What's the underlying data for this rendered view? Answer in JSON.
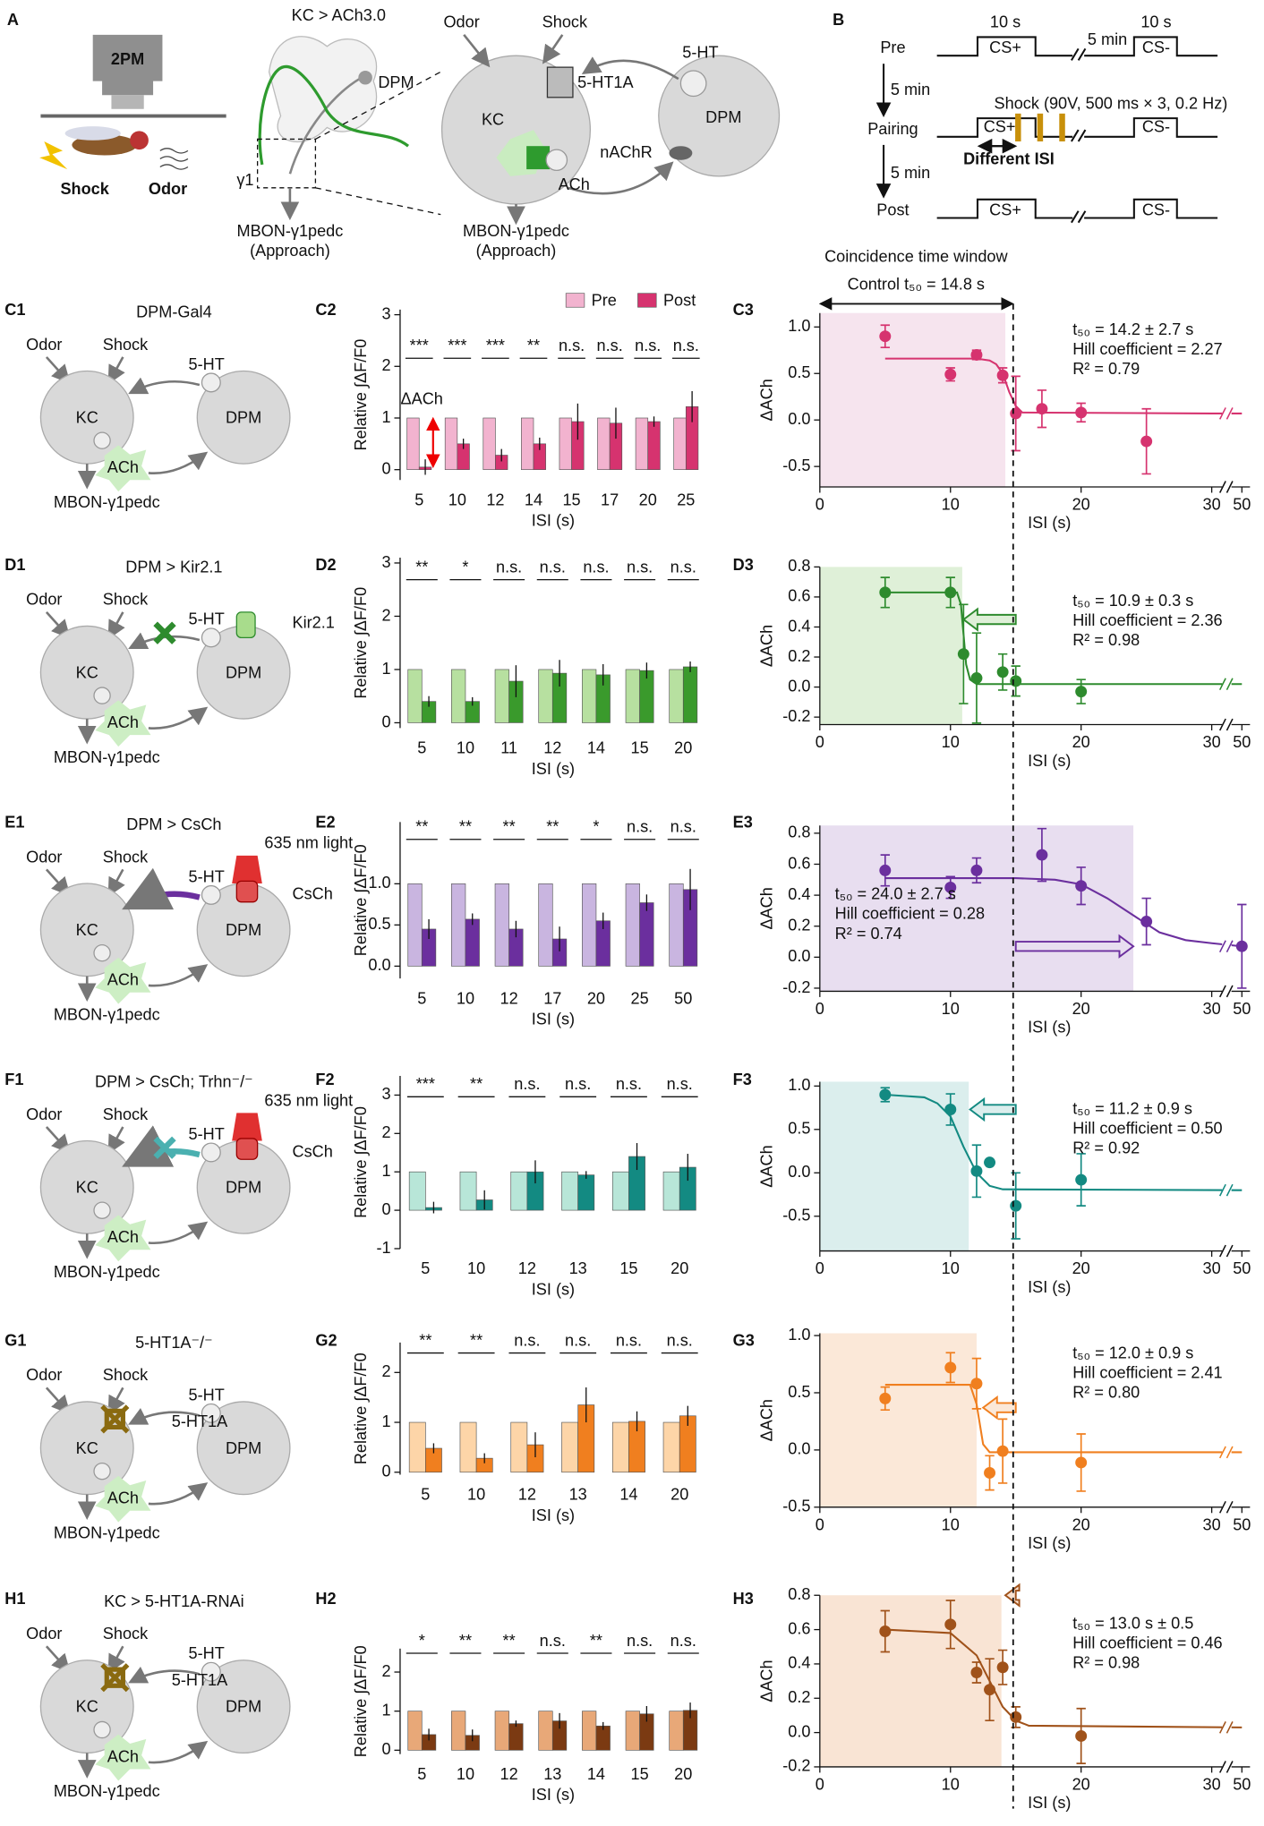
{
  "panel_a": {
    "label": "A",
    "microscope": "2PM",
    "shock": "Shock",
    "odor": "Odor",
    "genotype": "KC > ACh3.0",
    "dpm": "DPM",
    "gamma1": "γ1",
    "mbon": "MBON-γ1pedc",
    "approach": "(Approach)",
    "circuit": {
      "odor": "Odor",
      "shock": "Shock",
      "serotonin": "5-HT",
      "receptor": "5-HT1A",
      "kc": "KC",
      "dpm": "DPM",
      "nachr": "nAChR",
      "ach": "ACh",
      "mbon": "MBON-γ1pedc",
      "approach": "(Approach)"
    }
  },
  "panel_b": {
    "label": "B",
    "pre": "Pre",
    "pairing": "Pairing",
    "post": "Post",
    "duration_a": "10 s",
    "gap": "5 min",
    "duration_b": "10 s",
    "interval1": "5 min",
    "interval2": "5 min",
    "shock": "Shock (90V, 500 ms × 3, 0.2 Hz)",
    "isi": "Different ISI",
    "cs_plus": [
      "CS+",
      "CS+",
      "CS+"
    ],
    "cs_minus": [
      "CS-",
      "CS-",
      "CS-"
    ]
  },
  "window": {
    "title": "Coincidence time window",
    "control": "Control t₅₀ = 14.8 s",
    "control_t50": 14.8
  },
  "rows": [
    {
      "label": "C1",
      "title": "DPM-Gal4",
      "color": "#d6336f",
      "odor": "Odor",
      "shock": "Shock",
      "serotonin": "5-HT",
      "kc": "KC",
      "dpm": "DPM",
      "ach": "ACh",
      "mbon": "MBON-γ1pedc",
      "extras": []
    },
    {
      "label": "D1",
      "title": "DPM > Kir2.1",
      "color": "#2e8b2e",
      "odor": "Odor",
      "shock": "Shock",
      "serotonin": "5-HT",
      "kc": "KC",
      "dpm": "DPM",
      "ach": "ACh",
      "mbon": "MBON-γ1pedc",
      "extras": [
        "Kir2.1"
      ]
    },
    {
      "label": "E1",
      "title": "DPM > CsCh",
      "color": "#6b2f9e",
      "odor": "Odor",
      "shock": "Shock",
      "serotonin": "5-HT",
      "kc": "KC",
      "dpm": "DPM",
      "ach": "ACh",
      "mbon": "MBON-γ1pedc",
      "extras": [
        "635 nm light",
        "CsCh"
      ]
    },
    {
      "label": "F1",
      "title": "DPM > CsCh; Trhn⁻/⁻",
      "color": "#139a90",
      "odor": "Odor",
      "shock": "Shock",
      "serotonin": "5-HT",
      "kc": "KC",
      "dpm": "DPM",
      "ach": "ACh",
      "mbon": "MBON-γ1pedc",
      "extras": [
        "635 nm light",
        "CsCh"
      ]
    },
    {
      "label": "G1",
      "title": "5-HT1A⁻/⁻",
      "color": "#f07f1f",
      "odor": "Odor",
      "shock": "Shock",
      "serotonin": "5-HT",
      "kc": "KC",
      "dpm": "DPM",
      "ach": "ACh",
      "mbon": "MBON-γ1pedc",
      "extras": [
        "5-HT1A"
      ]
    },
    {
      "label": "H1",
      "title": "KC > 5-HT1A-RNAi",
      "color": "#b85a1a",
      "odor": "Odor",
      "shock": "Shock",
      "serotonin": "5-HT",
      "kc": "KC",
      "dpm": "DPM",
      "ach": "ACh",
      "mbon": "MBON-γ1pedc",
      "extras": [
        "5-HT1A"
      ]
    }
  ],
  "chart_data": [
    {
      "type": "bar",
      "label": "C2",
      "categories": [
        "5",
        "10",
        "12",
        "14",
        "15",
        "17",
        "20",
        "25"
      ],
      "series": [
        {
          "name": "Pre",
          "color": "#f2b3cf",
          "values": [
            1,
            1,
            1,
            1,
            1,
            1,
            1,
            1
          ]
        },
        {
          "name": "Post",
          "color": "#d6336f",
          "values": [
            0.05,
            0.5,
            0.28,
            0.5,
            0.93,
            0.9,
            0.93,
            1.22
          ],
          "errors": [
            0.15,
            0.1,
            0.12,
            0.12,
            0.35,
            0.3,
            0.1,
            0.3
          ]
        }
      ],
      "significance": [
        "***",
        "***",
        "***",
        "**",
        "n.s.",
        "n.s.",
        "n.s.",
        "n.s."
      ],
      "annotation": "ΔACh",
      "ylim": [
        -0.2,
        3.1
      ],
      "yticks": [
        0,
        1,
        2,
        3
      ],
      "x_label": "ISI (s)",
      "y_label": "Relative ∫ΔF/F0"
    },
    {
      "type": "scatter",
      "label": "C3",
      "color": "#d6336f",
      "x": [
        5,
        10,
        12,
        14,
        15,
        17,
        20,
        25
      ],
      "values": [
        0.9,
        0.49,
        0.7,
        0.48,
        0.07,
        0.12,
        0.08,
        -0.23
      ],
      "errors": [
        0.12,
        0.07,
        0.05,
        0.08,
        0.4,
        0.2,
        0.1,
        0.35
      ],
      "fit": {
        "x": [
          5,
          12,
          13,
          13.5,
          14,
          14.5,
          15,
          15.5,
          30,
          50
        ],
        "values": [
          0.66,
          0.66,
          0.64,
          0.6,
          0.5,
          0.3,
          0.15,
          0.08,
          0.07,
          0.07
        ]
      },
      "shade": [
        0,
        14.2
      ],
      "shade_color": "#f6e4ee",
      "xlim": [
        0,
        50
      ],
      "xticks": [
        0,
        10,
        20,
        30,
        50
      ],
      "axis_break": true,
      "ylim": [
        -0.72,
        1.15
      ],
      "yticks": [
        -0.5,
        {
          "value": 0,
          "label": "0.0"
        },
        0.5,
        {
          "value": 1,
          "label": "1.0"
        }
      ],
      "x_label": "ISI (s)",
      "y_label": "ΔACh",
      "annotations": [
        "t₅₀ = 14.2 ± 2.7 s",
        "Hill coefficient = 2.27",
        "R² = 0.79"
      ]
    },
    {
      "type": "bar",
      "label": "D2",
      "categories": [
        "5",
        "10",
        "11",
        "12",
        "14",
        "15",
        "20"
      ],
      "series": [
        {
          "color": "#b7e0a0",
          "values": [
            1,
            1,
            1,
            1,
            1,
            1,
            1
          ]
        },
        {
          "color": "#3a9a2c",
          "values": [
            0.4,
            0.4,
            0.78,
            0.93,
            0.9,
            0.98,
            1.05
          ],
          "errors": [
            0.1,
            0.08,
            0.3,
            0.25,
            0.2,
            0.15,
            0.1
          ]
        }
      ],
      "significance": [
        "**",
        "*",
        "n.s.",
        "n.s.",
        "n.s.",
        "n.s.",
        "n.s."
      ],
      "ylim": [
        -0.1,
        3.1
      ],
      "yticks": [
        0,
        1,
        2,
        3
      ],
      "x_label": "ISI (s)",
      "y_label": "Relative ∫ΔF/F0"
    },
    {
      "type": "scatter",
      "label": "D3",
      "color": "#2e8b2e",
      "x": [
        5,
        10,
        11,
        12,
        14,
        15,
        20
      ],
      "values": [
        0.63,
        0.63,
        0.22,
        0.06,
        0.1,
        0.04,
        -0.03
      ],
      "errors": [
        0.1,
        0.1,
        0.33,
        0.3,
        0.12,
        0.1,
        0.08
      ],
      "fit": {
        "x": [
          5,
          10.5,
          10.8,
          11,
          11.2,
          11.5,
          12,
          50
        ],
        "values": [
          0.63,
          0.63,
          0.55,
          0.35,
          0.15,
          0.05,
          0.02,
          0.02
        ]
      },
      "shade": [
        0,
        10.9
      ],
      "shade_color": "#dff0d8",
      "arrow": {
        "x": [
          15,
          11
        ],
        "y": 0.45
      },
      "xlim": [
        0,
        50
      ],
      "xticks": [
        0,
        10,
        20,
        30,
        50
      ],
      "axis_break": true,
      "ylim": [
        -0.25,
        0.8
      ],
      "yticks": [
        -0.2,
        {
          "value": 0,
          "label": "0.0"
        },
        0.2,
        0.4,
        0.6,
        0.8
      ],
      "x_label": "ISI (s)",
      "y_label": "ΔACh",
      "annotations": [
        "t₅₀ = 10.9 ± 0.3 s",
        "Hill coefficient = 2.36",
        "R² = 0.98"
      ]
    },
    {
      "type": "bar",
      "label": "E2",
      "categories": [
        "5",
        "10",
        "12",
        "17",
        "20",
        "25",
        "50"
      ],
      "series": [
        {
          "color": "#c9b5e0",
          "values": [
            1,
            1,
            1,
            1,
            1,
            1,
            1
          ]
        },
        {
          "color": "#6b2f9e",
          "values": [
            0.45,
            0.57,
            0.45,
            0.33,
            0.55,
            0.77,
            0.93
          ],
          "errors": [
            0.12,
            0.07,
            0.1,
            0.15,
            0.1,
            0.1,
            0.25
          ]
        }
      ],
      "significance": [
        "**",
        "**",
        "**",
        "**",
        "*",
        "n.s.",
        "n.s."
      ],
      "ylim": [
        -0.15,
        1.75
      ],
      "yticks": [
        {
          "value": 0,
          "label": "0.0"
        },
        0.5,
        {
          "value": 1,
          "label": "1.0"
        }
      ],
      "x_label": "ISI (s)",
      "y_label": "Relative ∫ΔF/F0"
    },
    {
      "type": "scatter",
      "label": "E3",
      "color": "#6b2f9e",
      "x": [
        5,
        10,
        12,
        17,
        20,
        25,
        50
      ],
      "values": [
        0.56,
        0.45,
        0.56,
        0.66,
        0.46,
        0.23,
        0.07
      ],
      "errors": [
        0.1,
        0.07,
        0.08,
        0.17,
        0.12,
        0.15,
        0.27
      ],
      "fit": {
        "x": [
          5,
          15,
          18,
          20,
          22,
          24,
          26,
          28,
          30,
          50
        ],
        "values": [
          0.51,
          0.51,
          0.5,
          0.47,
          0.38,
          0.27,
          0.16,
          0.11,
          0.09,
          0.07
        ]
      },
      "shade": [
        0,
        24
      ],
      "shade_color": "#e8def0",
      "arrow": {
        "x": [
          15,
          24
        ],
        "y": 0.07
      },
      "xlim": [
        0,
        50
      ],
      "xticks": [
        0,
        10,
        20,
        30,
        50
      ],
      "axis_break": true,
      "ylim": [
        -0.22,
        0.85
      ],
      "yticks": [
        -0.2,
        {
          "value": 0,
          "label": "0.0"
        },
        0.2,
        0.4,
        0.6,
        0.8
      ],
      "x_label": "ISI (s)",
      "y_label": "ΔACh",
      "annotations": [
        "t₅₀ = 24.0 ± 2.7 s",
        "Hill coefficient = 0.28",
        "R² = 0.74"
      ]
    },
    {
      "type": "bar",
      "label": "F2",
      "categories": [
        "5",
        "10",
        "12",
        "13",
        "15",
        "20"
      ],
      "series": [
        {
          "color": "#b8e6d8",
          "values": [
            1,
            1,
            1,
            1,
            1,
            1
          ]
        },
        {
          "color": "#138a82",
          "values": [
            0.07,
            0.27,
            1.0,
            0.92,
            1.4,
            1.12
          ],
          "errors": [
            0.15,
            0.25,
            0.3,
            0.1,
            0.35,
            0.35
          ]
        }
      ],
      "significance": [
        "***",
        "**",
        "n.s.",
        "n.s.",
        "n.s.",
        "n.s."
      ],
      "ylim": [
        -1,
        3.5
      ],
      "yticks": [
        -1,
        0,
        1,
        2,
        3
      ],
      "x_label": "ISI (s)",
      "y_label": "Relative ∫ΔF/F0"
    },
    {
      "type": "scatter",
      "label": "F3",
      "color": "#138a82",
      "x": [
        5,
        10,
        12,
        13,
        15,
        20
      ],
      "values": [
        0.9,
        0.73,
        0.02,
        0.12,
        -0.38,
        -0.08
      ],
      "errors": [
        0.08,
        0.18,
        0.3,
        0,
        0.38,
        0.3
      ],
      "fit": {
        "x": [
          5,
          8,
          9,
          10,
          11,
          12,
          13,
          14,
          50
        ],
        "values": [
          0.9,
          0.87,
          0.8,
          0.65,
          0.3,
          0,
          -0.15,
          -0.19,
          -0.2
        ]
      },
      "shade": [
        0,
        11.4
      ],
      "shade_color": "#dbeeed",
      "arrow": {
        "x": [
          15,
          11.5
        ],
        "y": 0.73
      },
      "xlim": [
        0,
        50
      ],
      "xticks": [
        0,
        10,
        20,
        30,
        50
      ],
      "axis_break": true,
      "ylim": [
        -0.9,
        1.05
      ],
      "yticks": [
        -0.5,
        {
          "value": 0,
          "label": "0.0"
        },
        0.5,
        {
          "value": 1,
          "label": "1.0"
        }
      ],
      "x_label": "ISI (s)",
      "y_label": "ΔACh",
      "annotations": [
        "t₅₀ = 11.2 ± 0.9 s",
        "Hill coefficient = 0.50",
        "R² = 0.92"
      ]
    },
    {
      "type": "bar",
      "label": "G2",
      "categories": [
        "5",
        "10",
        "12",
        "13",
        "14",
        "20"
      ],
      "series": [
        {
          "color": "#fdd5a8",
          "values": [
            1,
            1,
            1,
            1,
            1,
            1
          ]
        },
        {
          "color": "#f07f1f",
          "values": [
            0.48,
            0.28,
            0.55,
            1.35,
            1.02,
            1.13
          ],
          "errors": [
            0.1,
            0.1,
            0.25,
            0.35,
            0.2,
            0.2
          ]
        }
      ],
      "significance": [
        "**",
        "**",
        "n.s.",
        "n.s.",
        "n.s.",
        "n.s."
      ],
      "ylim": [
        -0.05,
        2.6
      ],
      "yticks": [
        0,
        1,
        2
      ],
      "x_label": "ISI (s)",
      "y_label": "Relative ∫ΔF/F0"
    },
    {
      "type": "scatter",
      "label": "G3",
      "color": "#f07f1f",
      "x": [
        5,
        10,
        12,
        13,
        14,
        20
      ],
      "values": [
        0.45,
        0.72,
        0.58,
        -0.2,
        -0.01,
        -0.11
      ],
      "errors": [
        0.1,
        0.13,
        0.22,
        0.15,
        0.28,
        0.25
      ],
      "fit": {
        "x": [
          5,
          11.5,
          12,
          12.5,
          13,
          50
        ],
        "values": [
          0.57,
          0.57,
          0.4,
          0.05,
          -0.02,
          -0.02
        ]
      },
      "shade": [
        0,
        12
      ],
      "shade_color": "#fbe8d8",
      "arrow": {
        "x": [
          15,
          12.5
        ],
        "y": 0.37
      },
      "xlim": [
        0,
        50
      ],
      "xticks": [
        0,
        10,
        20,
        30,
        50
      ],
      "axis_break": true,
      "ylim": [
        -0.5,
        1.02
      ],
      "yticks": [
        -0.5,
        {
          "value": 0,
          "label": "0.0"
        },
        0.5,
        {
          "value": 1,
          "label": "1.0"
        }
      ],
      "x_label": "ISI (s)",
      "y_label": "ΔACh",
      "annotations": [
        "t₅₀ = 12.0 ± 0.9 s",
        "Hill coefficient = 2.41",
        "R² = 0.80"
      ]
    },
    {
      "type": "bar",
      "label": "H2",
      "categories": [
        "5",
        "10",
        "12",
        "13",
        "14",
        "15",
        "20"
      ],
      "series": [
        {
          "color": "#e8a878",
          "values": [
            1,
            1,
            1,
            1,
            1,
            1,
            1
          ]
        },
        {
          "color": "#7b3a12",
          "values": [
            0.4,
            0.38,
            0.68,
            0.75,
            0.62,
            0.93,
            1.02
          ],
          "errors": [
            0.15,
            0.15,
            0.08,
            0.2,
            0.1,
            0.2,
            0.2
          ]
        }
      ],
      "significance": [
        "*",
        "**",
        "**",
        "n.s.",
        "**",
        "n.s.",
        "n.s."
      ],
      "ylim": [
        -0.1,
        2.6
      ],
      "yticks": [
        0,
        1,
        2
      ],
      "x_label": "ISI (s)",
      "y_label": "Relative ∫ΔF/F0"
    },
    {
      "type": "scatter",
      "label": "H3",
      "color": "#a0521a",
      "x": [
        5,
        10,
        12,
        13,
        14,
        15,
        20
      ],
      "values": [
        0.59,
        0.63,
        0.35,
        0.25,
        0.38,
        0.09,
        -0.02
      ],
      "errors": [
        0.12,
        0.14,
        0.06,
        0.18,
        0.1,
        0.06,
        0.16
      ],
      "fit": {
        "x": [
          5,
          10,
          12,
          13,
          14,
          15,
          16,
          50
        ],
        "values": [
          0.6,
          0.58,
          0.45,
          0.3,
          0.15,
          0.07,
          0.04,
          0.03
        ]
      },
      "shade": [
        0,
        13.9
      ],
      "shade_color": "#f9e4d4",
      "arrow": {
        "x": [
          15,
          14.2
        ],
        "y": 0.8
      },
      "xlim": [
        0,
        50
      ],
      "xticks": [
        0,
        10,
        20,
        30,
        50
      ],
      "axis_break": true,
      "ylim": [
        -0.2,
        0.8
      ],
      "yticks": [
        -0.2,
        {
          "value": 0,
          "label": "0.0"
        },
        0.2,
        0.4,
        0.6,
        0.8
      ],
      "x_label": "ISI (s)",
      "y_label": "ΔACh",
      "annotations": [
        "t₅₀ = 13.0 s ± 0.5",
        "Hill coefficient = 0.46",
        "R² = 0.98"
      ]
    }
  ]
}
